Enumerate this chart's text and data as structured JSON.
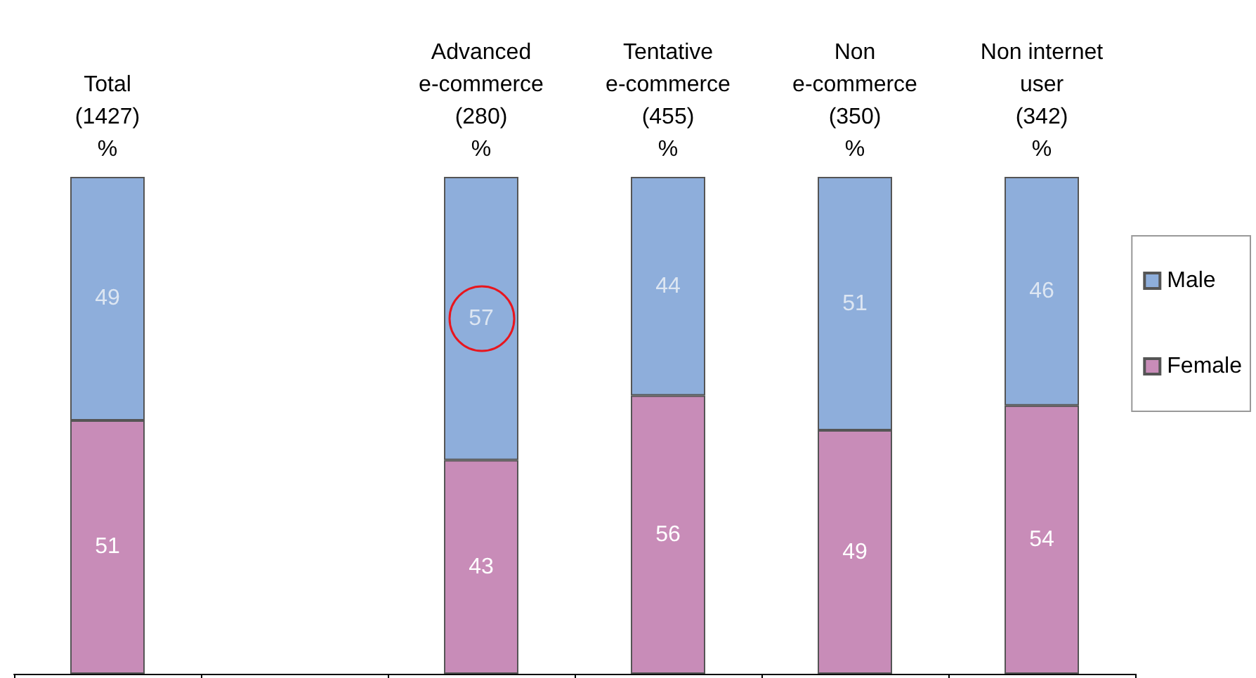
{
  "chart_data": {
    "type": "bar",
    "stacked": true,
    "data_labels": true,
    "legend": "right",
    "grid": false,
    "categories": [
      "Total\n(1427)\n%",
      null,
      "Advanced\ne-commerce\n(280)\n%",
      "Tentative\ne-commerce\n(455)\n%",
      "Non\ne-commerce\n(350)\n%",
      "Non internet\nuser\n(342)\n%"
    ],
    "series": [
      {
        "name": "Female",
        "color": "#c88cb8",
        "values": [
          51,
          null,
          43,
          56,
          49,
          54
        ]
      },
      {
        "name": "Male",
        "color": "#8eaedb",
        "values": [
          49,
          null,
          57,
          44,
          51,
          46
        ]
      }
    ]
  }
}
